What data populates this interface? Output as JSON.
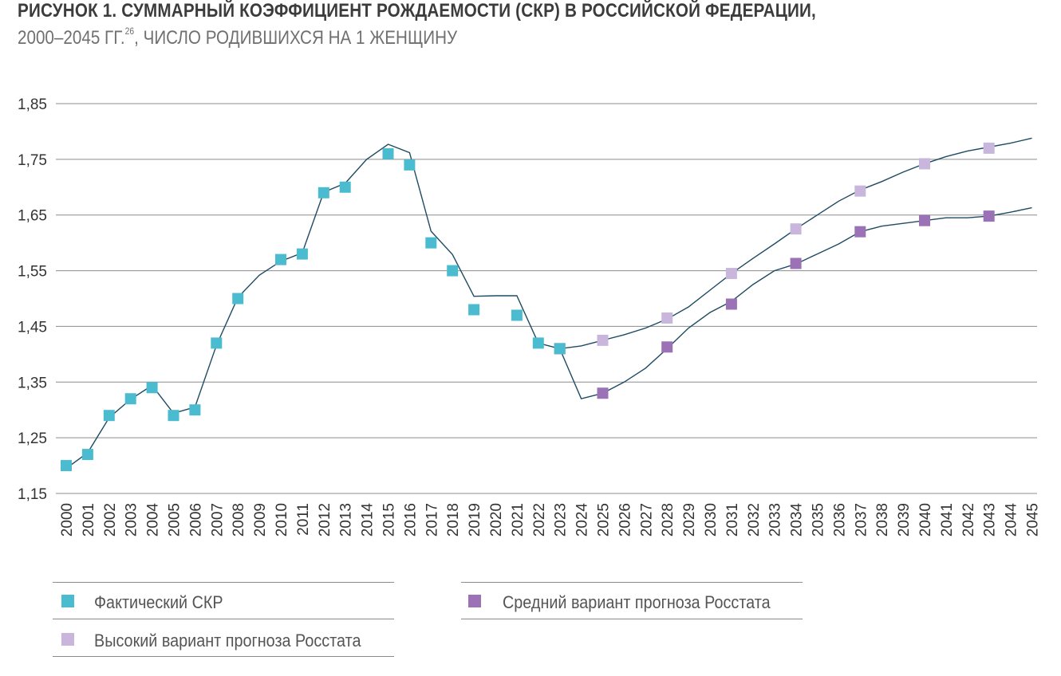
{
  "title_line1": "РИСУНОК 1. СУММАРНЫЙ КОЭФФИЦИЕНТ РОЖДАЕМОСТИ (СКР) В РОССИЙСКОЙ ФЕДЕРАЦИИ,",
  "title_line2": "2000–2045 ГГ.",
  "title_footnote": "26",
  "title_line2_rest": ", ЧИСЛО РОДИВШИХСЯ НА 1 ЖЕНЩИНУ",
  "chart_data": {
    "type": "line",
    "x_categories": [
      "2000",
      "2001",
      "2002",
      "2003",
      "2004",
      "2005",
      "2006",
      "2007",
      "2008",
      "2009",
      "2010",
      "2011",
      "2012",
      "2013",
      "2014",
      "2015",
      "2016",
      "2017",
      "2018",
      "2019",
      "2020",
      "2021",
      "2022",
      "2023",
      "2024",
      "2025",
      "2026",
      "2027",
      "2028",
      "2029",
      "2030",
      "2031",
      "2032",
      "2033",
      "2034",
      "2035",
      "2036",
      "2037",
      "2038",
      "2039",
      "2040",
      "2041",
      "2042",
      "2043",
      "2044",
      "2045"
    ],
    "y_ticks": [
      "1,15",
      "1,25",
      "1,35",
      "1,45",
      "1,55",
      "1,65",
      "1,75",
      "1,85"
    ],
    "ylim": [
      1.15,
      1.85
    ],
    "grid": true,
    "series": [
      {
        "name": "Фактический СКР",
        "color": "#4bbcd0",
        "line_points": [
          [
            2000,
            1.195
          ],
          [
            2001,
            1.223
          ],
          [
            2002,
            1.286
          ],
          [
            2003,
            1.319
          ],
          [
            2004,
            1.344
          ],
          [
            2005,
            1.294
          ],
          [
            2006,
            1.305
          ],
          [
            2007,
            1.416
          ],
          [
            2008,
            1.502
          ],
          [
            2009,
            1.542
          ],
          [
            2010,
            1.567
          ],
          [
            2011,
            1.582
          ],
          [
            2012,
            1.691
          ],
          [
            2013,
            1.707
          ],
          [
            2014,
            1.75
          ],
          [
            2015,
            1.777
          ],
          [
            2016,
            1.762
          ],
          [
            2017,
            1.621
          ],
          [
            2018,
            1.579
          ],
          [
            2019,
            1.504
          ],
          [
            2020,
            1.505
          ],
          [
            2021,
            1.505
          ],
          [
            2022,
            1.42
          ],
          [
            2023,
            1.41
          ]
        ],
        "markers": [
          [
            2000,
            1.2
          ],
          [
            2001,
            1.22
          ],
          [
            2002,
            1.29
          ],
          [
            2003,
            1.32
          ],
          [
            2004,
            1.34
          ],
          [
            2005,
            1.29
          ],
          [
            2006,
            1.3
          ],
          [
            2007,
            1.42
          ],
          [
            2008,
            1.5
          ],
          [
            2009,
            null
          ],
          [
            2010,
            1.57
          ],
          [
            2011,
            1.58
          ],
          [
            2012,
            1.69
          ],
          [
            2013,
            1.7
          ],
          [
            2015,
            1.76
          ],
          [
            2016,
            1.74
          ],
          [
            2017,
            1.6
          ],
          [
            2018,
            1.55
          ],
          [
            2019,
            1.48
          ],
          [
            2021,
            1.47
          ],
          [
            2022,
            1.42
          ],
          [
            2023,
            1.41
          ]
        ]
      },
      {
        "name": "Высокий вариант прогноза Росстата",
        "color": "#c8b6dc",
        "line_points": [
          [
            2023,
            1.41
          ],
          [
            2024,
            1.415
          ],
          [
            2025,
            1.425
          ],
          [
            2026,
            1.435
          ],
          [
            2027,
            1.447
          ],
          [
            2028,
            1.463
          ],
          [
            2029,
            1.485
          ],
          [
            2030,
            1.515
          ],
          [
            2031,
            1.545
          ],
          [
            2032,
            1.572
          ],
          [
            2033,
            1.598
          ],
          [
            2034,
            1.625
          ],
          [
            2035,
            1.65
          ],
          [
            2036,
            1.675
          ],
          [
            2037,
            1.695
          ],
          [
            2038,
            1.71
          ],
          [
            2039,
            1.727
          ],
          [
            2040,
            1.742
          ],
          [
            2041,
            1.755
          ],
          [
            2042,
            1.765
          ],
          [
            2043,
            1.772
          ],
          [
            2044,
            1.779
          ],
          [
            2045,
            1.788
          ]
        ],
        "markers": [
          [
            2025,
            1.425
          ],
          [
            2028,
            1.465
          ],
          [
            2031,
            1.545
          ],
          [
            2034,
            1.625
          ],
          [
            2037,
            1.693
          ],
          [
            2040,
            1.742
          ],
          [
            2043,
            1.77
          ]
        ]
      },
      {
        "name": "Средний вариант прогноза Росстата",
        "color": "#9b72b5",
        "line_points": [
          [
            2023,
            1.41
          ],
          [
            2024,
            1.32
          ],
          [
            2025,
            1.33
          ],
          [
            2026,
            1.35
          ],
          [
            2027,
            1.375
          ],
          [
            2028,
            1.41
          ],
          [
            2029,
            1.447
          ],
          [
            2030,
            1.475
          ],
          [
            2031,
            1.495
          ],
          [
            2032,
            1.525
          ],
          [
            2033,
            1.55
          ],
          [
            2034,
            1.562
          ],
          [
            2035,
            1.58
          ],
          [
            2036,
            1.598
          ],
          [
            2037,
            1.62
          ],
          [
            2038,
            1.63
          ],
          [
            2039,
            1.635
          ],
          [
            2040,
            1.64
          ],
          [
            2041,
            1.645
          ],
          [
            2042,
            1.645
          ],
          [
            2043,
            1.648
          ],
          [
            2044,
            1.655
          ],
          [
            2045,
            1.663
          ]
        ],
        "markers": [
          [
            2023,
            1.41
          ],
          [
            2025,
            1.33
          ],
          [
            2028,
            1.413
          ],
          [
            2031,
            1.49
          ],
          [
            2034,
            1.563
          ],
          [
            2037,
            1.62
          ],
          [
            2040,
            1.64
          ],
          [
            2043,
            1.648
          ]
        ]
      }
    ],
    "line_color": "#1e4b63",
    "legend": [
      {
        "label": "Фактический СКР",
        "color": "#4bbcd0"
      },
      {
        "label": "Высокий вариант прогноза Росстата",
        "color": "#c8b6dc"
      },
      {
        "label": "Средний вариант прогноза Росстата",
        "color": "#9b72b5"
      }
    ]
  }
}
